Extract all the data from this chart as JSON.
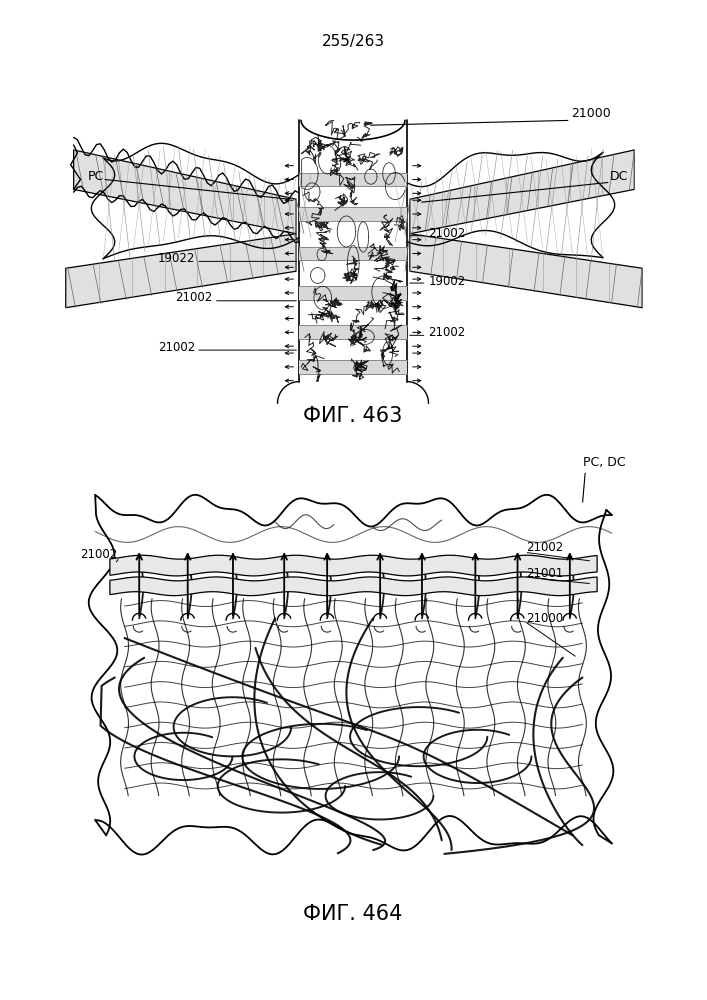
{
  "page_number": "255/263",
  "fig1_caption": "ФИГ. 463",
  "fig2_caption": "ФИГ. 464",
  "bg_color": "#ffffff",
  "line_color": "#000000",
  "gray_color": "#bbbbbb"
}
